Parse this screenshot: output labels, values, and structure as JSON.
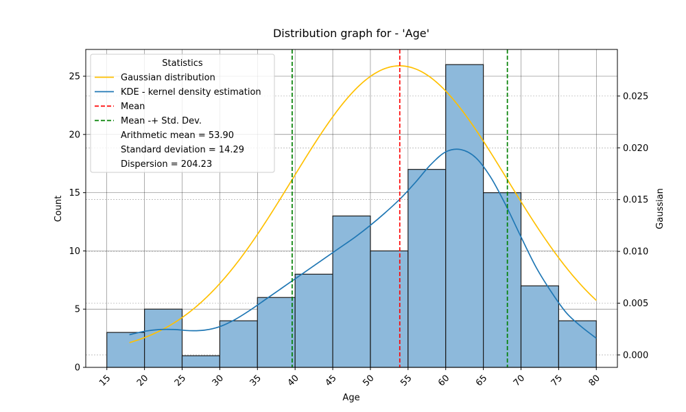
{
  "chart_data": {
    "type": "bar",
    "title": "Distribution graph for - 'Age'",
    "xlabel": "Age",
    "ylabel": "Count",
    "y2label": "Gaussian",
    "xlim": [
      12.2,
      82.8
    ],
    "ylim": [
      0,
      27.3
    ],
    "y2lim": [
      -0.0012,
      0.0295
    ],
    "xticks": [
      15,
      20,
      25,
      30,
      35,
      40,
      45,
      50,
      55,
      60,
      65,
      70,
      75,
      80
    ],
    "yticks": [
      0,
      5,
      10,
      15,
      20,
      25
    ],
    "y2ticks": [
      0.0,
      0.005,
      0.01,
      0.015,
      0.02,
      0.025
    ],
    "y2tick_labels": [
      "0.000",
      "0.005",
      "0.010",
      "0.015",
      "0.020",
      "0.025"
    ],
    "grid": true,
    "histogram": {
      "bin_edges": [
        15,
        20,
        25,
        30,
        35,
        40,
        45,
        50,
        55,
        60,
        65,
        70,
        75,
        80
      ],
      "counts": [
        3,
        5,
        1,
        4,
        6,
        8,
        13,
        10,
        17,
        26,
        15,
        7,
        4
      ],
      "color": "#8db9db",
      "edge_color": "#1a1a1a"
    },
    "series": [
      {
        "name": "Gaussian distribution",
        "kind": "gaussian",
        "axis": "y2",
        "mean": 53.9,
        "std": 14.29,
        "x_range": [
          18,
          80
        ],
        "color": "#ffc000"
      },
      {
        "name": "KDE - kernel density estimation",
        "kind": "line",
        "axis": "y",
        "color": "#1f77b4",
        "x": [
          18,
          20,
          22,
          24,
          26,
          28,
          30,
          32,
          34,
          36,
          38,
          40,
          42,
          44,
          46,
          48,
          50,
          52,
          54,
          56,
          58,
          60,
          62,
          64,
          66,
          68,
          70,
          72,
          74,
          76,
          78,
          80
        ],
        "y": [
          2.8,
          3.1,
          3.25,
          3.25,
          3.15,
          3.2,
          3.5,
          4.1,
          4.9,
          5.8,
          6.7,
          7.6,
          8.5,
          9.4,
          10.3,
          11.2,
          12.2,
          13.3,
          14.5,
          15.9,
          17.4,
          18.5,
          18.7,
          18.0,
          16.3,
          13.9,
          11.2,
          8.6,
          6.5,
          4.7,
          3.5,
          2.5
        ]
      },
      {
        "name": "Mean",
        "kind": "vline",
        "x": 53.9,
        "color": "#ff0000",
        "dash": true
      },
      {
        "name": "Mean -+ Std. Dev.",
        "kind": "vlines",
        "x": [
          39.61,
          68.19
        ],
        "color": "#008000",
        "dash": true
      }
    ],
    "legend": {
      "title": "Statistics",
      "placement": "top-left",
      "entries": [
        "Gaussian distribution",
        "KDE - kernel density estimation",
        "Mean",
        "Mean -+ Std. Dev.",
        "Arithmetic mean = 53.90",
        "Standard deviation = 14.29",
        "Dispersion = 204.23"
      ]
    }
  }
}
